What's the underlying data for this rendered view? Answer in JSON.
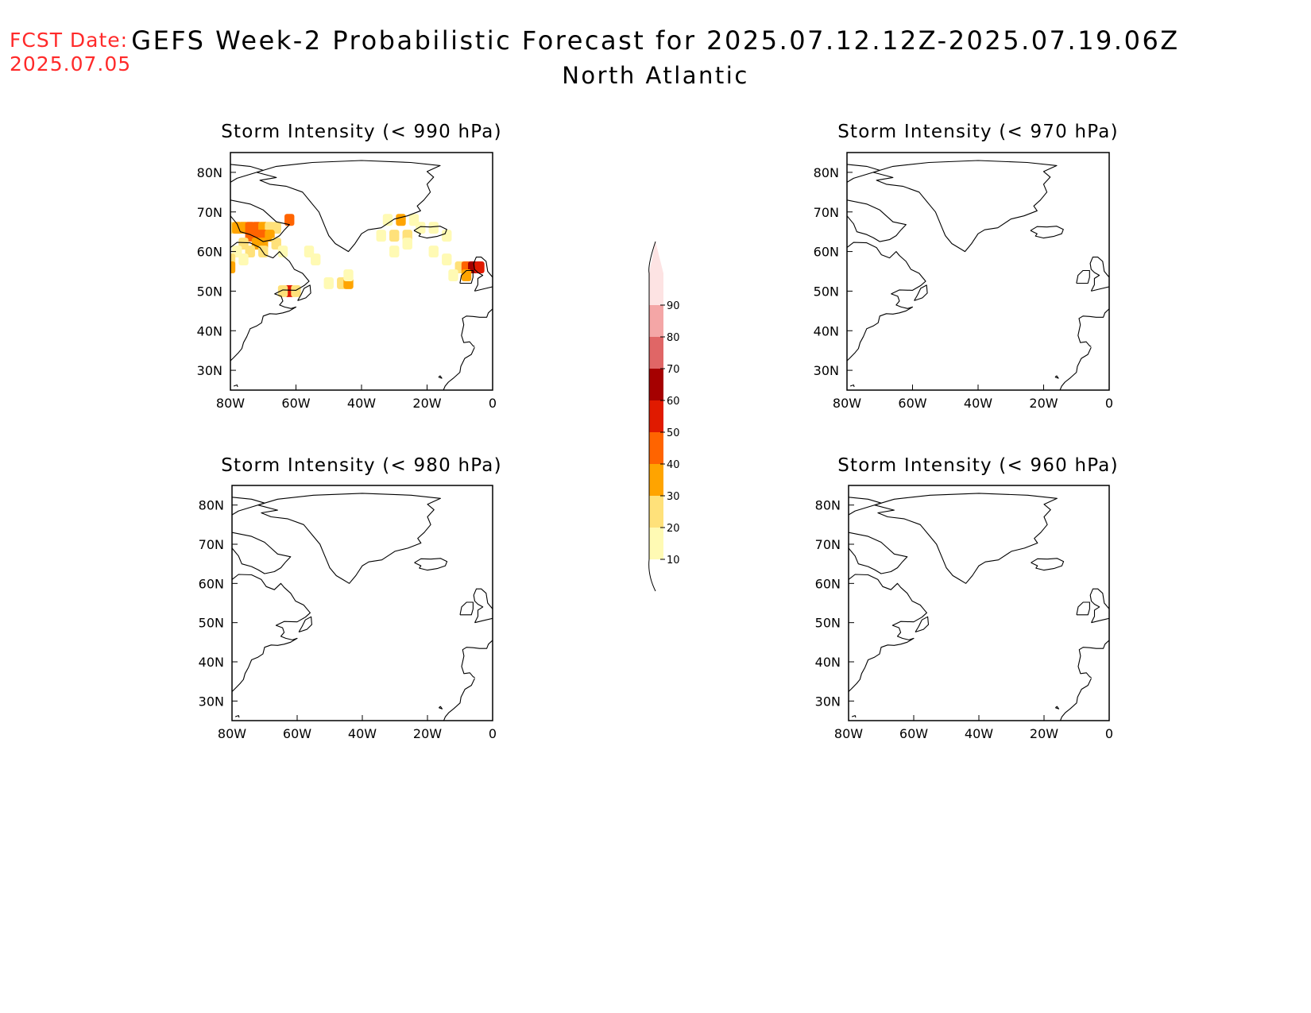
{
  "header": {
    "fcst_label": "FCST Date:",
    "fcst_date": "2025.07.05",
    "title": "GEFS Week-2 Probabilistic Forecast for 2025.07.12.12Z-2025.07.19.06Z",
    "subtitle": "North Atlantic"
  },
  "map": {
    "lon_range": [
      -80,
      0
    ],
    "lat_range": [
      25,
      85
    ],
    "x_ticks": [
      {
        "lon": -80,
        "label": "80W"
      },
      {
        "lon": -60,
        "label": "60W"
      },
      {
        "lon": -40,
        "label": "40W"
      },
      {
        "lon": -20,
        "label": "20W"
      },
      {
        "lon": 0,
        "label": "0"
      }
    ],
    "y_ticks": [
      {
        "lat": 80,
        "label": "80N"
      },
      {
        "lat": 70,
        "label": "70N"
      },
      {
        "lat": 60,
        "label": "60N"
      },
      {
        "lat": 50,
        "label": "50N"
      },
      {
        "lat": 40,
        "label": "40N"
      },
      {
        "lat": 30,
        "label": "30N"
      }
    ]
  },
  "panels": [
    {
      "title": "Storm Intensity (< 990 hPa)",
      "threshold_hPa": 990,
      "has_data": true
    },
    {
      "title": "Storm Intensity (< 970 hPa)",
      "threshold_hPa": 970,
      "has_data": false
    },
    {
      "title": "Storm Intensity (< 980 hPa)",
      "threshold_hPa": 980,
      "has_data": false
    },
    {
      "title": "Storm Intensity (< 960 hPa)",
      "threshold_hPa": 960,
      "has_data": false
    }
  ],
  "colorbar": {
    "bins": [
      {
        "label": "10",
        "color": "#fffab4"
      },
      {
        "label": "20",
        "color": "#ffe17a"
      },
      {
        "label": "30",
        "color": "#ffa400"
      },
      {
        "label": "40",
        "color": "#ff6400"
      },
      {
        "label": "50",
        "color": "#e01a00"
      },
      {
        "label": "60",
        "color": "#a50000"
      },
      {
        "label": "70",
        "color": "#e06666"
      },
      {
        "label": "80",
        "color": "#f4a6a6"
      },
      {
        "label": "90",
        "color": "#fde3e3"
      }
    ]
  },
  "probability_cells_990": [
    {
      "lon": -80,
      "lat": 66,
      "p": 20
    },
    {
      "lon": -78,
      "lat": 66,
      "p": 30
    },
    {
      "lon": -76,
      "lat": 66,
      "p": 30
    },
    {
      "lon": -74,
      "lat": 66,
      "p": 40
    },
    {
      "lon": -72,
      "lat": 66,
      "p": 40
    },
    {
      "lon": -70,
      "lat": 66,
      "p": 30
    },
    {
      "lon": -68,
      "lat": 66,
      "p": 20
    },
    {
      "lon": -66,
      "lat": 66,
      "p": 20
    },
    {
      "lon": -62,
      "lat": 68,
      "p": 40
    },
    {
      "lon": -74,
      "lat": 64,
      "p": 40
    },
    {
      "lon": -72,
      "lat": 64,
      "p": 40
    },
    {
      "lon": -70,
      "lat": 64,
      "p": 40
    },
    {
      "lon": -68,
      "lat": 64,
      "p": 30
    },
    {
      "lon": -72,
      "lat": 62,
      "p": 30
    },
    {
      "lon": -70,
      "lat": 62,
      "p": 30
    },
    {
      "lon": -66,
      "lat": 62,
      "p": 20
    },
    {
      "lon": -76,
      "lat": 62,
      "p": 20
    },
    {
      "lon": -78,
      "lat": 60,
      "p": 10
    },
    {
      "lon": -74,
      "lat": 60,
      "p": 20
    },
    {
      "lon": -70,
      "lat": 60,
      "p": 20
    },
    {
      "lon": -64,
      "lat": 60,
      "p": 10
    },
    {
      "lon": -80,
      "lat": 58,
      "p": 20
    },
    {
      "lon": -76,
      "lat": 58,
      "p": 10
    },
    {
      "lon": -80,
      "lat": 56,
      "p": 30
    },
    {
      "lon": -56,
      "lat": 60,
      "p": 10
    },
    {
      "lon": -54,
      "lat": 58,
      "p": 10
    },
    {
      "lon": -62,
      "lat": 50,
      "p": 50
    },
    {
      "lon": -60,
      "lat": 50,
      "p": 20
    },
    {
      "lon": -64,
      "lat": 50,
      "p": 20
    },
    {
      "lon": -50,
      "lat": 52,
      "p": 10
    },
    {
      "lon": -46,
      "lat": 52,
      "p": 20
    },
    {
      "lon": -44,
      "lat": 52,
      "p": 30
    },
    {
      "lon": -44,
      "lat": 54,
      "p": 10
    },
    {
      "lon": -32,
      "lat": 68,
      "p": 10
    },
    {
      "lon": -28,
      "lat": 68,
      "p": 30
    },
    {
      "lon": -24,
      "lat": 68,
      "p": 10
    },
    {
      "lon": -34,
      "lat": 64,
      "p": 10
    },
    {
      "lon": -30,
      "lat": 64,
      "p": 20
    },
    {
      "lon": -26,
      "lat": 64,
      "p": 20
    },
    {
      "lon": -22,
      "lat": 66,
      "p": 10
    },
    {
      "lon": -18,
      "lat": 66,
      "p": 10
    },
    {
      "lon": -14,
      "lat": 64,
      "p": 10
    },
    {
      "lon": -30,
      "lat": 60,
      "p": 10
    },
    {
      "lon": -26,
      "lat": 62,
      "p": 10
    },
    {
      "lon": -18,
      "lat": 60,
      "p": 10
    },
    {
      "lon": -14,
      "lat": 58,
      "p": 10
    },
    {
      "lon": -10,
      "lat": 56,
      "p": 20
    },
    {
      "lon": -8,
      "lat": 56,
      "p": 40
    },
    {
      "lon": -6,
      "lat": 56,
      "p": 60
    },
    {
      "lon": -4,
      "lat": 56,
      "p": 50
    },
    {
      "lon": -8,
      "lat": 54,
      "p": 30
    },
    {
      "lon": -12,
      "lat": 54,
      "p": 10
    }
  ]
}
